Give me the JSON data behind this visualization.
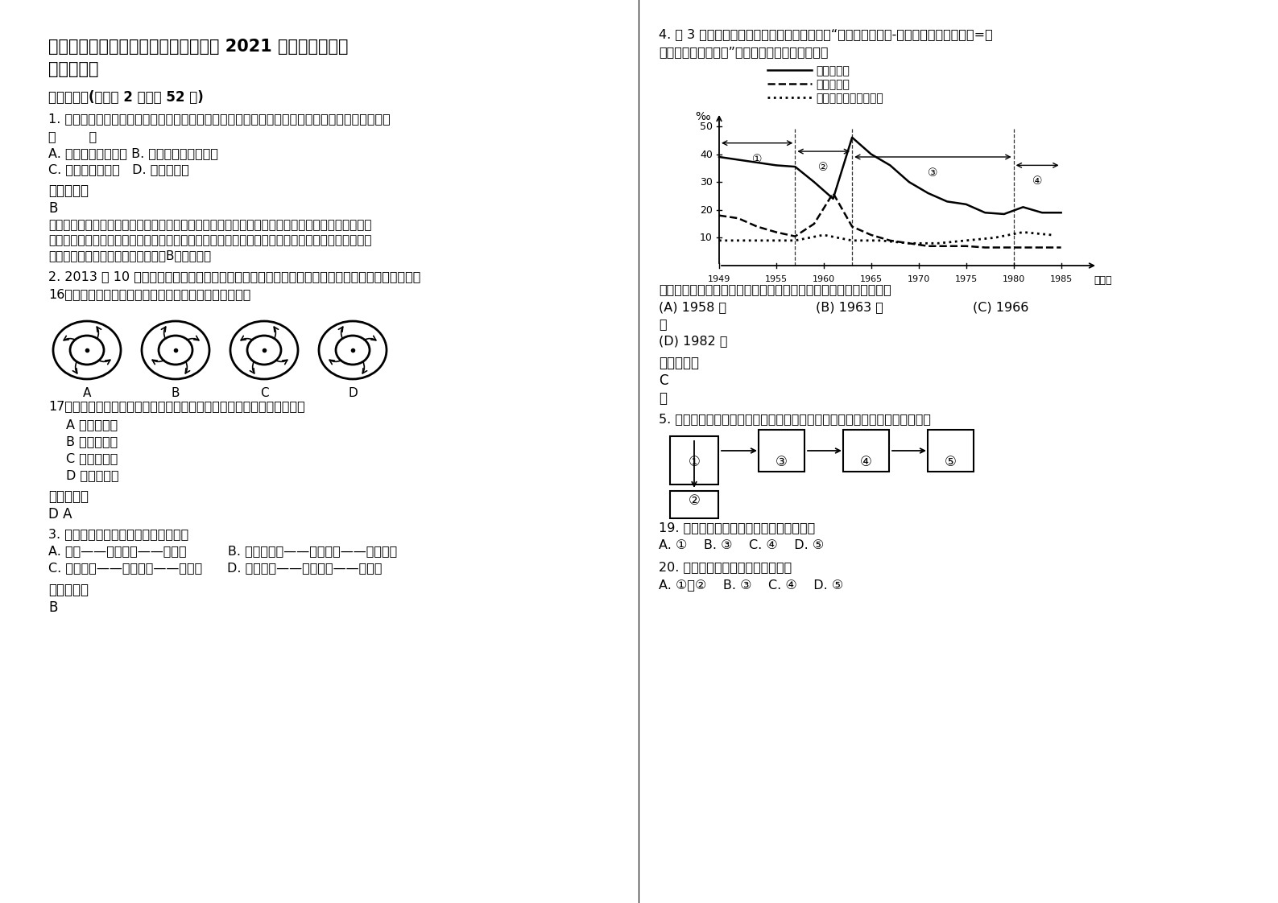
{
  "title_line1": "内蒙古自治区赤峰市萨力巴蒙古族中学 2021 年高一地理模拟",
  "title_line2": "试卷含解析",
  "section1": "一、选择题(每小题 2 分，共 52 分)",
  "q1_text": "1. 美国东南部地区利用光热资源优势，重点发展蔬菜、花卉农业以供应东北工业区，这主要取决于",
  "q1_paren": "（        ）",
  "q1_AB": "A. 市场区位及其变化 B. 交通运输条件的改善",
  "q1_CD": "C. 国家政策的变化   D. 地形的差异",
  "ref_answer": "参考答案：",
  "ans1": "B",
  "detail1": "【详解】美国东北部工业区城市人口比重大，气候较为冷湿，发展乳畜业为主；美国东南部地区以亚",
  "detail2": "热带气候为主，光热充足，降水丰沛，发展亚热带作物的生产种植，重点发展蔬菜、花卉生产，借助",
  "detail3": "交通运输条件销往美国东北部地区，B选项正确。",
  "q2_text": "2. 2013 年 10 月初，西太平洋出现少见的双台风，受其影响，我国东部多地出现严重的洪涝灾害。",
  "q16_text": "16、下列四幅图中能正确表示影响我国的台风的示意图是",
  "q17_text": "17、若台风中心分别经过了厦门的正东方和正西方，则厦门的风向分别为",
  "q17_A": "A 西北、东南",
  "q17_B": "B 东南、西北",
  "q17_C": "C 东北、东南",
  "q17_D": "D 东北、西南",
  "ref_answer2": "参考答案：",
  "ans17": "D A",
  "q3_text": "3. 下列地貌的成因与分布组合正确的是",
  "q3_AB": "A. 沙丘——风力侵蚀——干旱区          B. 河流三角洲——流水沉积——海滨地区",
  "q3_CD": "C. 成都平原——流水搬运——湿润区      D. 黄土高原——流水侵蚀——湿润区",
  "ans3": "B",
  "q4_intro1": "4. 图 3 为我国建国以来人口增长曲线图，假设“人口自然增长率-城镇社会劳动者增长率=社",
  "q4_intro2": "会剩余劳动力增长率”，结合下图分析回答下题。",
  "q4_legend1": "人口出生率",
  "q4_legend2": "人口死亡率",
  "q4_legend3": "城镇社会劳动者增长率",
  "q4_q": "依据图中信息，下列年份中，我国社会剩余劳动力的增长率最大的是",
  "q4_A": "(A) 1958 年",
  "q4_B": "(B) 1963 年",
  "q4_C": "(C) 1966",
  "q4_newline": "年",
  "q4_D": "(D) 1982 年",
  "ref_answer4": "参考答案：",
  "ans4": "C",
  "note4": "略",
  "q5_text": "5. 读风化、侵蚀、搬运、堆积和固结成岩作用的相关示意图，回答下面小题。",
  "q19_text": "19. 表示形成新月形沙丘地貌的外力作用是",
  "q19_opts": "A. ①    B. ③    C. ④    D. ⑤",
  "q20_text": "20. 表示三峡地貌形成的外力作用是",
  "q20_opts": "A. ①或②    B. ③    C. ④    D. ⑤",
  "bg_color": "#ffffff",
  "text_color": "#000000"
}
